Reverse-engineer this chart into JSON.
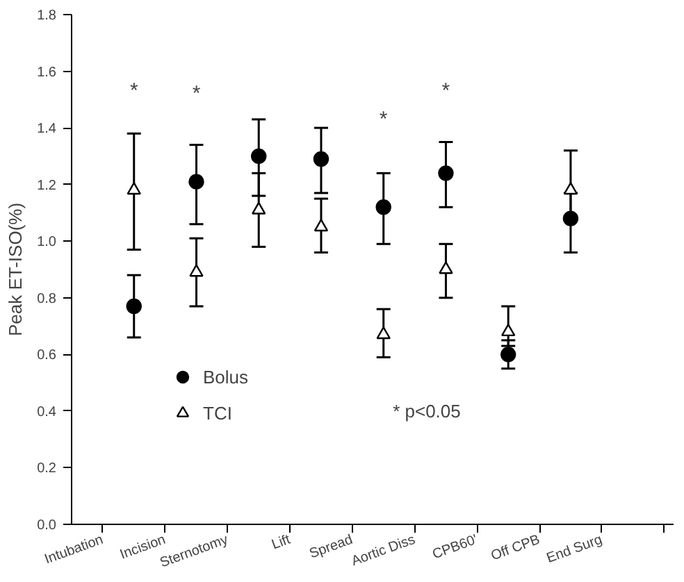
{
  "chart_data": {
    "type": "scatter",
    "ylabel": "Peak ET-ISO(%)",
    "categories": [
      "Intubation",
      null,
      "Incision",
      null,
      "Sternotomy",
      null,
      "Lift",
      null,
      "Spread",
      null,
      "Aortic Diss",
      null,
      "CPB60'",
      null,
      "Off CPB",
      null,
      "End Surg",
      null,
      null
    ],
    "ylim": [
      0,
      1.8
    ],
    "yticks": [
      {
        "value": 0,
        "label": "0.0"
      },
      {
        "value": 0.2,
        "label": "0.2"
      },
      {
        "value": 0.4,
        "label": "0.4"
      },
      {
        "value": 0.6,
        "label": "0.6"
      },
      {
        "value": 0.8,
        "label": "0.8"
      },
      {
        "value": 1,
        "label": "1.0"
      },
      {
        "value": 1.2,
        "label": "1.2"
      },
      {
        "value": 1.4,
        "label": "1.4"
      },
      {
        "value": 1.6,
        "label": "1.6"
      },
      {
        "value": 1.8,
        "label": "1.8"
      }
    ],
    "grid": false,
    "legend": "bottom left",
    "series": [
      {
        "name": "Bolus",
        "color": "#000000",
        "marker": "circle",
        "values": [
          null,
          0.77,
          null,
          1.21,
          null,
          1.3,
          null,
          1.29,
          null,
          1.12,
          null,
          1.24,
          null,
          0.6,
          null,
          1.08,
          null,
          null,
          null
        ],
        "errors": [
          null,
          [
            0.66,
            0.88
          ],
          null,
          [
            1.06,
            1.34
          ],
          null,
          [
            1.16,
            1.43
          ],
          null,
          [
            1.17,
            1.4
          ],
          null,
          [
            0.99,
            1.24
          ],
          null,
          [
            1.12,
            1.35
          ],
          null,
          [
            0.55,
            0.65
          ],
          null,
          [
            0.96,
            1.17
          ],
          null,
          null,
          null
        ]
      },
      {
        "name": "TCI",
        "color": "#000000",
        "marker": "triangle",
        "values": [
          null,
          1.18,
          null,
          0.89,
          null,
          1.11,
          null,
          1.05,
          null,
          0.67,
          null,
          0.9,
          null,
          0.68,
          null,
          1.18,
          null,
          null,
          null
        ],
        "errors": [
          null,
          [
            0.97,
            1.38
          ],
          null,
          [
            0.77,
            1.01
          ],
          null,
          [
            0.98,
            1.24
          ],
          null,
          [
            0.96,
            1.15
          ],
          null,
          [
            0.59,
            0.76
          ],
          null,
          [
            0.8,
            0.99
          ],
          null,
          [
            0.63,
            0.77
          ],
          null,
          [
            1.09,
            1.32
          ],
          null,
          null,
          null
        ]
      }
    ],
    "annotations": [
      "*",
      "*",
      "*",
      "*",
      "* p<0.05"
    ]
  }
}
